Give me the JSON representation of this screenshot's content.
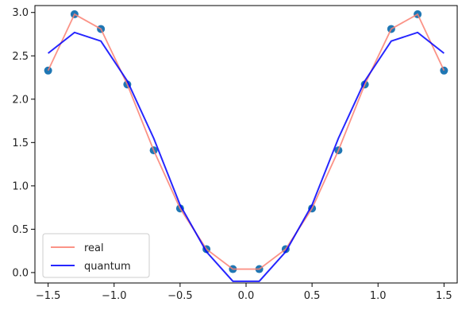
{
  "chart_data": {
    "type": "line",
    "title": "",
    "xlabel": "",
    "ylabel": "",
    "xlim": [
      -1.6,
      1.6
    ],
    "ylim": [
      -0.12,
      3.08
    ],
    "x_ticks": [
      -1.5,
      -1.0,
      -0.5,
      0.0,
      0.5,
      1.0,
      1.5
    ],
    "x_tick_labels": [
      "−1.5",
      "−1.0",
      "−0.5",
      "0.0",
      "0.5",
      "1.0",
      "1.5"
    ],
    "y_ticks": [
      0.0,
      0.5,
      1.0,
      1.5,
      2.0,
      2.5,
      3.0
    ],
    "y_tick_labels": [
      "0.0",
      "0.5",
      "1.0",
      "1.5",
      "2.0",
      "2.5",
      "3.0"
    ],
    "grid": false,
    "legend_position": "lower-left",
    "x": [
      -1.5,
      -1.3,
      -1.1,
      -0.9,
      -0.7,
      -0.5,
      -0.3,
      -0.1,
      0.1,
      0.3,
      0.5,
      0.7,
      0.9,
      1.1,
      1.3,
      1.5
    ],
    "scatter": {
      "color": "#1f77b4",
      "values": [
        2.33,
        2.98,
        2.81,
        2.17,
        1.41,
        0.74,
        0.27,
        0.04,
        0.04,
        0.27,
        0.74,
        1.41,
        2.17,
        2.81,
        2.98,
        2.33
      ]
    },
    "series": [
      {
        "name": "real",
        "color": "#fa8072",
        "values": [
          2.33,
          2.98,
          2.81,
          2.17,
          1.41,
          0.74,
          0.27,
          0.04,
          0.04,
          0.27,
          0.74,
          1.41,
          2.17,
          2.81,
          2.98,
          2.33
        ]
      },
      {
        "name": "quantum",
        "color": "#0000ff",
        "values": [
          2.53,
          2.77,
          2.67,
          2.21,
          1.55,
          0.78,
          0.24,
          -0.1,
          -0.1,
          0.24,
          0.78,
          1.55,
          2.21,
          2.67,
          2.77,
          2.53
        ]
      }
    ]
  }
}
